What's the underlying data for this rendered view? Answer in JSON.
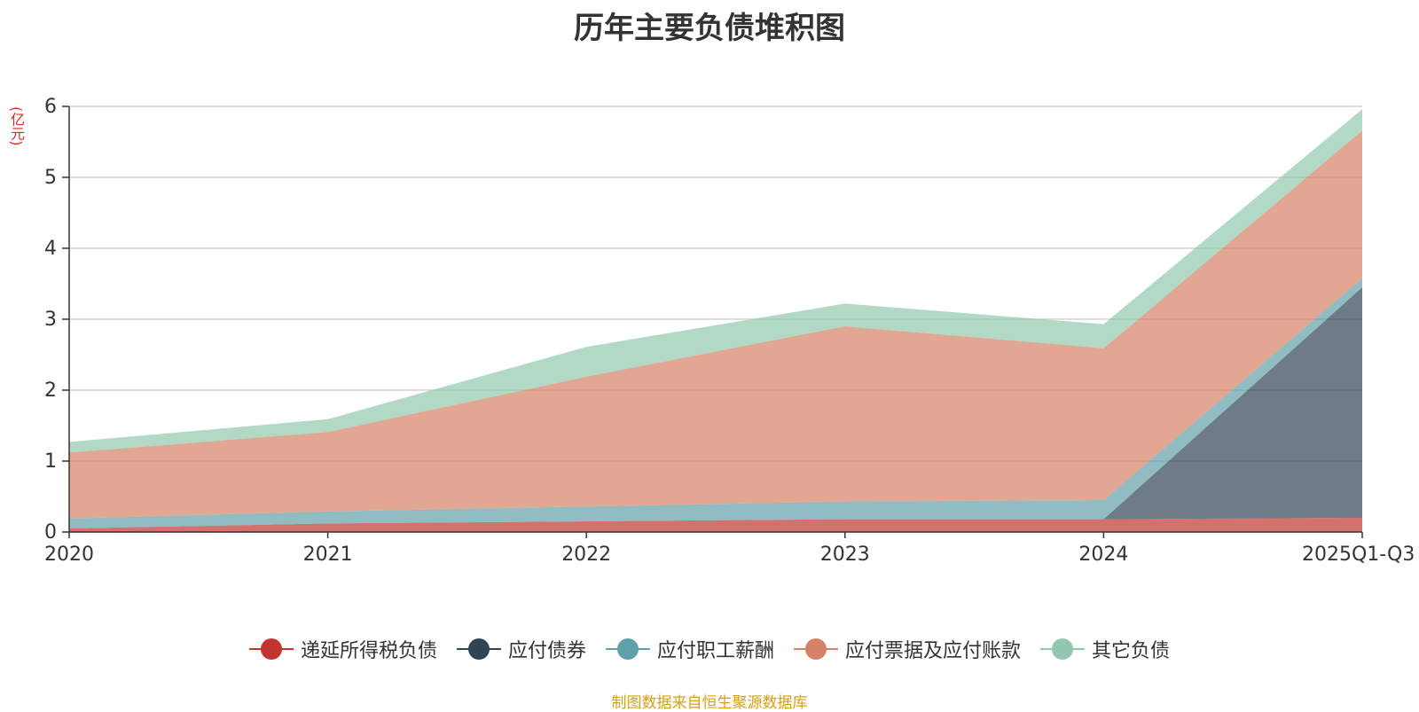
{
  "chart_data": {
    "type": "area",
    "stacked": true,
    "title": "历年主要负债堆积图",
    "ylabel": "(亿元)",
    "xlabel": "",
    "categories": [
      "2020",
      "2021",
      "2022",
      "2023",
      "2024",
      "2025Q1-Q3"
    ],
    "ylim": [
      0,
      6
    ],
    "yticks": [
      "0",
      "1",
      "2",
      "3",
      "4",
      "5",
      "6"
    ],
    "grid": true,
    "legend_position": "bottom",
    "series": [
      {
        "name": "递延所得税负债",
        "color": "#c23531",
        "values": [
          0.05,
          0.12,
          0.15,
          0.18,
          0.18,
          0.2
        ]
      },
      {
        "name": "应付债券",
        "color": "#2f4554",
        "values": [
          0.0,
          0.0,
          0.0,
          0.0,
          0.0,
          3.25
        ]
      },
      {
        "name": "应付职工薪酬",
        "color": "#61a0a8",
        "values": [
          0.14,
          0.17,
          0.21,
          0.25,
          0.27,
          0.13
        ]
      },
      {
        "name": "应付票据及应付账款",
        "color": "#d48265",
        "values": [
          0.93,
          1.12,
          1.83,
          2.47,
          2.14,
          2.08
        ]
      },
      {
        "name": "其它负债",
        "color": "#91c7ae",
        "values": [
          0.15,
          0.18,
          0.42,
          0.32,
          0.34,
          0.3
        ]
      }
    ]
  },
  "source_note": "制图数据来自恒生聚源数据库"
}
